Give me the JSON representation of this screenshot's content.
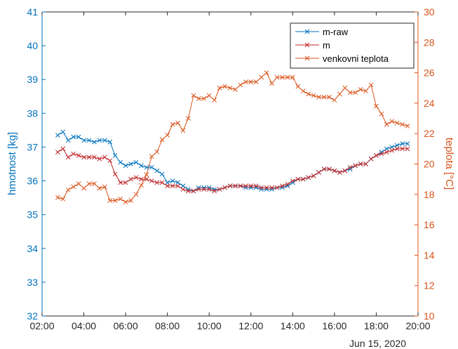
{
  "chart_data": {
    "type": "line",
    "xlabel": "",
    "x_note": "Jun 15, 2020",
    "x_ticks": [
      "02:00",
      "04:00",
      "06:00",
      "08:00",
      "10:00",
      "12:00",
      "14:00",
      "16:00",
      "18:00",
      "20:00"
    ],
    "xlim": [
      "02:00",
      "20:00"
    ],
    "y_left": {
      "label": "hmotnost [kg]",
      "ylim": [
        32,
        41
      ],
      "ticks": [
        "32",
        "33",
        "34",
        "35",
        "36",
        "37",
        "38",
        "39",
        "40",
        "41"
      ],
      "color": "#0072BD"
    },
    "y_right": {
      "label": "teplota [°C]",
      "ylim": [
        10,
        30
      ],
      "ticks": [
        "10",
        "12",
        "14",
        "16",
        "18",
        "20",
        "22",
        "24",
        "26",
        "28",
        "30"
      ],
      "color": "#D95319"
    },
    "grid": false,
    "legend_placement": "top-right",
    "series": [
      {
        "name": "m-raw",
        "axis": "left",
        "color": "#0072BD",
        "marker": "x",
        "x": [
          "02:45",
          "03:00",
          "03:15",
          "03:30",
          "03:45",
          "04:00",
          "04:15",
          "04:30",
          "04:45",
          "05:00",
          "05:15",
          "05:30",
          "05:45",
          "06:00",
          "06:15",
          "06:30",
          "06:45",
          "07:00",
          "07:15",
          "07:30",
          "07:45",
          "08:00",
          "08:15",
          "08:30",
          "08:45",
          "09:00",
          "09:15",
          "09:30",
          "09:45",
          "10:00",
          "10:15",
          "10:30",
          "10:45",
          "11:00",
          "11:15",
          "11:30",
          "11:45",
          "12:00",
          "12:15",
          "12:30",
          "12:45",
          "13:00",
          "13:15",
          "13:30",
          "13:45",
          "14:00",
          "14:15",
          "14:30",
          "14:45",
          "15:00",
          "15:15",
          "15:30",
          "15:45",
          "16:00",
          "16:15",
          "16:30",
          "16:45",
          "17:00",
          "17:15",
          "17:30",
          "17:45",
          "18:00",
          "18:15",
          "18:30",
          "18:45",
          "19:00",
          "19:15",
          "19:30"
        ],
        "y": [
          37.35,
          37.45,
          37.2,
          37.3,
          37.3,
          37.2,
          37.2,
          37.15,
          37.2,
          37.2,
          37.15,
          36.75,
          36.55,
          36.45,
          36.5,
          36.55,
          36.45,
          36.4,
          36.4,
          36.3,
          36.2,
          35.95,
          36.0,
          35.95,
          35.85,
          35.75,
          35.7,
          35.8,
          35.8,
          35.8,
          35.75,
          35.75,
          35.8,
          35.85,
          35.85,
          35.85,
          35.8,
          35.8,
          35.8,
          35.75,
          35.75,
          35.75,
          35.8,
          35.8,
          35.85,
          35.95,
          36.05,
          36.05,
          36.1,
          36.15,
          36.25,
          36.35,
          36.35,
          36.3,
          36.25,
          36.3,
          36.35,
          36.45,
          36.5,
          36.5,
          36.65,
          36.75,
          36.85,
          36.95,
          37.0,
          37.05,
          37.1,
          37.1
        ]
      },
      {
        "name": "m",
        "axis": "left",
        "color": "#C0282A",
        "marker": "x",
        "x": [
          "02:45",
          "03:00",
          "03:15",
          "03:30",
          "03:45",
          "04:00",
          "04:15",
          "04:30",
          "04:45",
          "05:00",
          "05:15",
          "05:30",
          "05:45",
          "06:00",
          "06:15",
          "06:30",
          "06:45",
          "07:00",
          "07:15",
          "07:30",
          "07:45",
          "08:00",
          "08:15",
          "08:30",
          "08:45",
          "09:00",
          "09:15",
          "09:30",
          "09:45",
          "10:00",
          "10:15",
          "10:30",
          "10:45",
          "11:00",
          "11:15",
          "11:30",
          "11:45",
          "12:00",
          "12:15",
          "12:30",
          "12:45",
          "13:00",
          "13:15",
          "13:30",
          "13:45",
          "14:00",
          "14:15",
          "14:30",
          "14:45",
          "15:00",
          "15:15",
          "15:30",
          "15:45",
          "16:00",
          "16:15",
          "16:30",
          "16:45",
          "17:00",
          "17:15",
          "17:30",
          "17:45",
          "18:00",
          "18:15",
          "18:30",
          "18:45",
          "19:00",
          "19:15",
          "19:30"
        ],
        "y": [
          36.85,
          36.95,
          36.7,
          36.8,
          36.75,
          36.7,
          36.7,
          36.7,
          36.65,
          36.7,
          36.6,
          36.2,
          35.95,
          35.95,
          36.05,
          36.1,
          36.05,
          36.05,
          36.0,
          35.95,
          35.95,
          35.85,
          35.85,
          35.85,
          35.75,
          35.7,
          35.7,
          35.75,
          35.75,
          35.75,
          35.7,
          35.75,
          35.8,
          35.85,
          35.85,
          35.85,
          35.85,
          35.85,
          35.85,
          35.8,
          35.8,
          35.8,
          35.8,
          35.85,
          35.9,
          36.0,
          36.05,
          36.05,
          36.1,
          36.15,
          36.25,
          36.35,
          36.35,
          36.3,
          36.25,
          36.3,
          36.4,
          36.45,
          36.5,
          36.5,
          36.65,
          36.75,
          36.8,
          36.85,
          36.9,
          36.95,
          36.95,
          36.95
        ]
      },
      {
        "name": "venkovni teplota",
        "axis": "right",
        "color": "#D95319",
        "marker": "x",
        "x": [
          "02:45",
          "03:00",
          "03:15",
          "03:30",
          "03:45",
          "04:00",
          "04:15",
          "04:30",
          "04:45",
          "05:00",
          "05:15",
          "05:30",
          "05:45",
          "06:00",
          "06:15",
          "06:30",
          "06:45",
          "07:00",
          "07:15",
          "07:30",
          "07:45",
          "08:00",
          "08:15",
          "08:30",
          "08:45",
          "09:00",
          "09:15",
          "09:30",
          "09:45",
          "10:00",
          "10:15",
          "10:30",
          "10:45",
          "11:00",
          "11:15",
          "11:30",
          "11:45",
          "12:00",
          "12:15",
          "12:30",
          "12:45",
          "13:00",
          "13:15",
          "13:30",
          "13:45",
          "14:00",
          "14:15",
          "14:30",
          "14:45",
          "15:00",
          "15:15",
          "15:30",
          "15:45",
          "16:00",
          "16:15",
          "16:30",
          "16:45",
          "17:00",
          "17:15",
          "17:30",
          "17:45",
          "18:00",
          "18:15",
          "18:30",
          "18:45",
          "19:00",
          "19:15",
          "19:30"
        ],
        "y": [
          17.8,
          17.7,
          18.3,
          18.5,
          18.7,
          18.4,
          18.7,
          18.7,
          18.4,
          18.5,
          17.6,
          17.6,
          17.7,
          17.5,
          17.6,
          18.0,
          18.6,
          19.3,
          20.5,
          20.8,
          21.6,
          21.9,
          22.6,
          22.7,
          22.2,
          23.0,
          24.5,
          24.3,
          24.3,
          24.5,
          24.2,
          25.0,
          25.1,
          25.0,
          24.9,
          25.2,
          25.4,
          25.4,
          25.4,
          25.7,
          26.0,
          25.3,
          25.7,
          25.7,
          25.7,
          25.7,
          25.1,
          24.8,
          24.6,
          24.5,
          24.4,
          24.4,
          24.4,
          24.2,
          24.6,
          25.0,
          24.7,
          24.7,
          24.9,
          24.8,
          25.2,
          23.8,
          23.3,
          22.6,
          22.8,
          22.7,
          22.6,
          22.5
        ]
      }
    ]
  }
}
